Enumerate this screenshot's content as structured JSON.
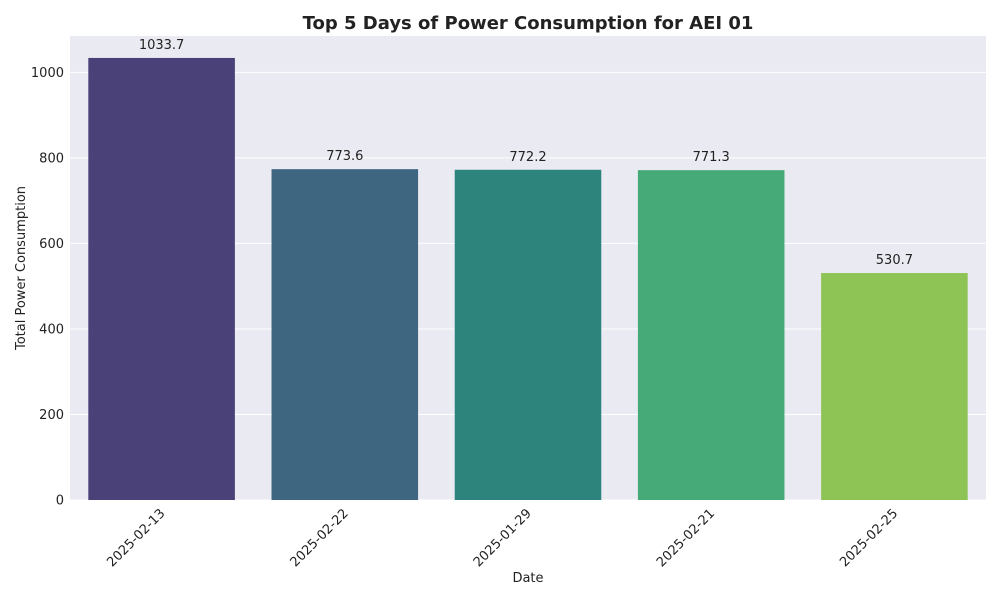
{
  "chart_data": {
    "type": "bar",
    "title": "Top 5 Days of Power Consumption for AEI 01",
    "xlabel": "Date",
    "ylabel": "Total Power Consumption",
    "categories": [
      "2025-02-13",
      "2025-02-22",
      "2025-01-29",
      "2025-02-21",
      "2025-02-25"
    ],
    "values": [
      1033.7,
      773.6,
      772.2,
      771.3,
      530.7
    ],
    "data_labels": [
      "1033.7",
      "773.6",
      "772.2",
      "771.3",
      "530.7"
    ],
    "ylim": [
      0,
      1085
    ],
    "yticks": [
      0,
      200,
      400,
      600,
      800,
      1000
    ],
    "ytick_labels": [
      "0",
      "200",
      "400",
      "600",
      "800",
      "1000"
    ],
    "grid": true,
    "colors": {
      "bars": [
        "#4a4178",
        "#3e6681",
        "#2d847d",
        "#46aa78",
        "#8ec456"
      ],
      "plot_background": "#eaeaf2",
      "grid": "#ffffff",
      "text": "#222222"
    }
  }
}
